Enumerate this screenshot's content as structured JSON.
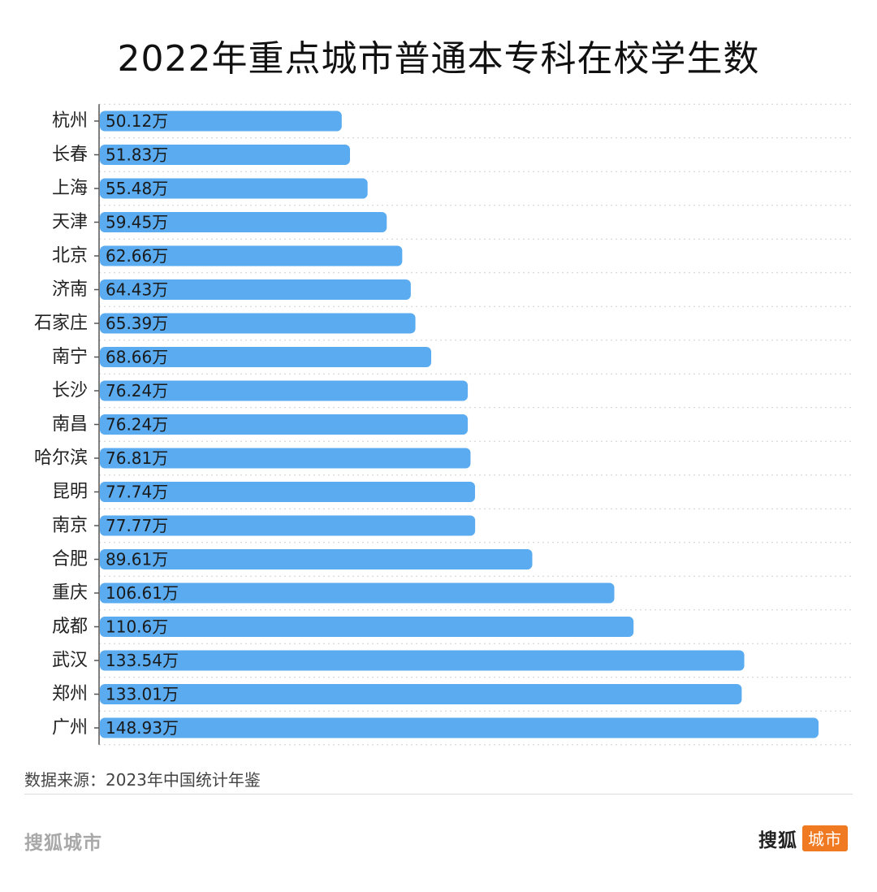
{
  "chart_data": {
    "type": "bar",
    "orientation": "horizontal",
    "title": "2022年重点城市普通本专科在校学生数",
    "categories": [
      "杭州",
      "长春",
      "上海",
      "天津",
      "北京",
      "济南",
      "石家庄",
      "南宁",
      "长沙",
      "南昌",
      "哈尔滨",
      "昆明",
      "南京",
      "合肥",
      "重庆",
      "成都",
      "武汉",
      "郑州",
      "广州"
    ],
    "values": [
      50.12,
      51.83,
      55.48,
      59.45,
      62.66,
      64.43,
      65.39,
      68.66,
      76.24,
      76.24,
      76.81,
      77.74,
      77.77,
      89.61,
      106.61,
      110.6,
      133.54,
      133.01,
      148.93
    ],
    "value_labels": [
      "50.12万",
      "51.83万",
      "55.48万",
      "59.45万",
      "62.66万",
      "64.43万",
      "65.39万",
      "68.66万",
      "76.24万",
      "76.24万",
      "76.81万",
      "77.74万",
      "77.77万",
      "89.61万",
      "106.61万",
      "110.6万",
      "133.54万",
      "133.01万",
      "148.93万"
    ],
    "unit": "万",
    "xlim": [
      0,
      150
    ],
    "grid": true,
    "bar_color": "#5aabef",
    "axis_color": "#555555"
  },
  "source": "数据来源：2023年中国统计年鉴",
  "brand_left": "搜狐城市",
  "brand_right": {
    "name": "搜狐",
    "tag": "城市"
  },
  "colors": {
    "accent": "#f07a22",
    "divider": "#dcdcdc",
    "brand_gray": "#a8a8a8"
  }
}
